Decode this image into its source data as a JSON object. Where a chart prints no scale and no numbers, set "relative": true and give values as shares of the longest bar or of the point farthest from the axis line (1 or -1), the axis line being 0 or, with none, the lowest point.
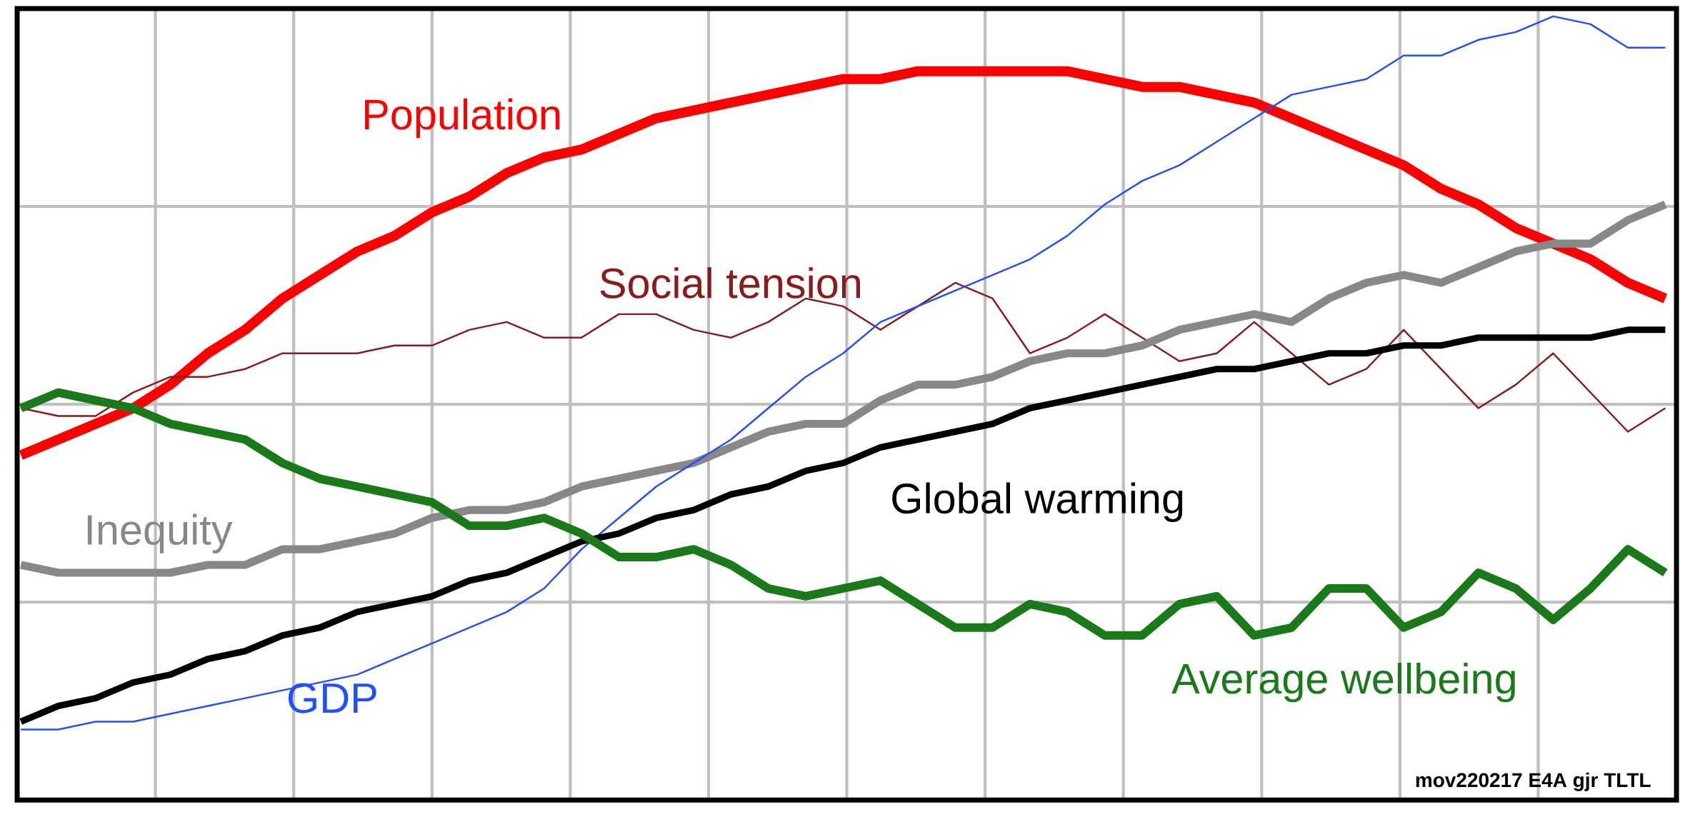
{
  "chart_data": {
    "type": "line",
    "relative": true,
    "grid": true,
    "categories": [
      null,
      null,
      null,
      null,
      null,
      null,
      null,
      null,
      null,
      null,
      null,
      null,
      null,
      null,
      null,
      null,
      null,
      null,
      null,
      null,
      null,
      null,
      null,
      null,
      null,
      null,
      null,
      null,
      null,
      null,
      null,
      null,
      null,
      null,
      null,
      null,
      null,
      null,
      null,
      null,
      null,
      null,
      null,
      null,
      null
    ],
    "series": [
      {
        "name": "Population",
        "color": "#ff0000",
        "values": [
          0.44,
          0.46,
          0.48,
          0.5,
          0.53,
          0.57,
          0.6,
          0.64,
          0.67,
          0.7,
          0.72,
          0.75,
          0.77,
          0.8,
          0.82,
          0.83,
          0.85,
          0.87,
          0.88,
          0.89,
          0.9,
          0.91,
          0.92,
          0.92,
          0.93,
          0.93,
          0.93,
          0.93,
          0.93,
          0.92,
          0.91,
          0.91,
          0.9,
          0.89,
          0.87,
          0.85,
          0.83,
          0.81,
          0.78,
          0.76,
          0.73,
          0.71,
          0.69,
          0.66,
          0.64
        ]
      },
      {
        "name": "Social tension",
        "color": "#8b1a1a",
        "values": [
          0.5,
          0.49,
          0.49,
          0.52,
          0.54,
          0.54,
          0.55,
          0.57,
          0.57,
          0.57,
          0.58,
          0.58,
          0.6,
          0.61,
          0.59,
          0.59,
          0.62,
          0.62,
          0.6,
          0.59,
          0.61,
          0.64,
          0.63,
          0.6,
          0.63,
          0.66,
          0.64,
          0.57,
          0.59,
          0.62,
          0.59,
          0.56,
          0.57,
          0.61,
          0.57,
          0.53,
          0.55,
          0.6,
          0.55,
          0.5,
          0.53,
          0.57,
          0.52,
          0.47,
          0.5
        ]
      },
      {
        "name": "Inequity",
        "color": "#888888",
        "values": [
          0.3,
          0.29,
          0.29,
          0.29,
          0.29,
          0.3,
          0.3,
          0.32,
          0.32,
          0.33,
          0.34,
          0.36,
          0.37,
          0.37,
          0.38,
          0.4,
          0.41,
          0.42,
          0.43,
          0.45,
          0.47,
          0.48,
          0.48,
          0.51,
          0.53,
          0.53,
          0.54,
          0.56,
          0.57,
          0.57,
          0.58,
          0.6,
          0.61,
          0.62,
          0.61,
          0.64,
          0.66,
          0.67,
          0.66,
          0.68,
          0.7,
          0.71,
          0.71,
          0.74,
          0.76
        ]
      },
      {
        "name": "GDP",
        "color": "#1f4fff",
        "values": [
          0.09,
          0.09,
          0.1,
          0.1,
          0.11,
          0.12,
          0.13,
          0.14,
          0.15,
          0.16,
          0.18,
          0.2,
          0.22,
          0.24,
          0.27,
          0.32,
          0.36,
          0.4,
          0.43,
          0.46,
          0.5,
          0.54,
          0.57,
          0.61,
          0.63,
          0.65,
          0.67,
          0.69,
          0.72,
          0.76,
          0.79,
          0.81,
          0.84,
          0.87,
          0.9,
          0.91,
          0.92,
          0.95,
          0.95,
          0.97,
          0.98,
          1.0,
          0.99,
          0.96,
          0.96
        ]
      },
      {
        "name": "Global warming",
        "color": "#000000",
        "values": [
          0.1,
          0.12,
          0.13,
          0.15,
          0.16,
          0.18,
          0.19,
          0.21,
          0.22,
          0.24,
          0.25,
          0.26,
          0.28,
          0.29,
          0.31,
          0.33,
          0.34,
          0.36,
          0.37,
          0.39,
          0.4,
          0.42,
          0.43,
          0.45,
          0.46,
          0.47,
          0.48,
          0.5,
          0.51,
          0.52,
          0.53,
          0.54,
          0.55,
          0.55,
          0.56,
          0.57,
          0.57,
          0.58,
          0.58,
          0.59,
          0.59,
          0.59,
          0.59,
          0.6,
          0.6
        ]
      },
      {
        "name": "Average wellbeing",
        "color": "#1a7a1a",
        "values": [
          0.5,
          0.52,
          0.51,
          0.5,
          0.48,
          0.47,
          0.46,
          0.43,
          0.41,
          0.4,
          0.39,
          0.38,
          0.35,
          0.35,
          0.36,
          0.34,
          0.31,
          0.31,
          0.32,
          0.3,
          0.27,
          0.26,
          0.27,
          0.28,
          0.25,
          0.22,
          0.22,
          0.25,
          0.24,
          0.21,
          0.21,
          0.25,
          0.26,
          0.21,
          0.22,
          0.27,
          0.27,
          0.22,
          0.24,
          0.29,
          0.27,
          0.23,
          0.27,
          0.32,
          0.29
        ]
      }
    ],
    "annotations": [
      "mov220217 E4A gjr TLTL"
    ]
  }
}
